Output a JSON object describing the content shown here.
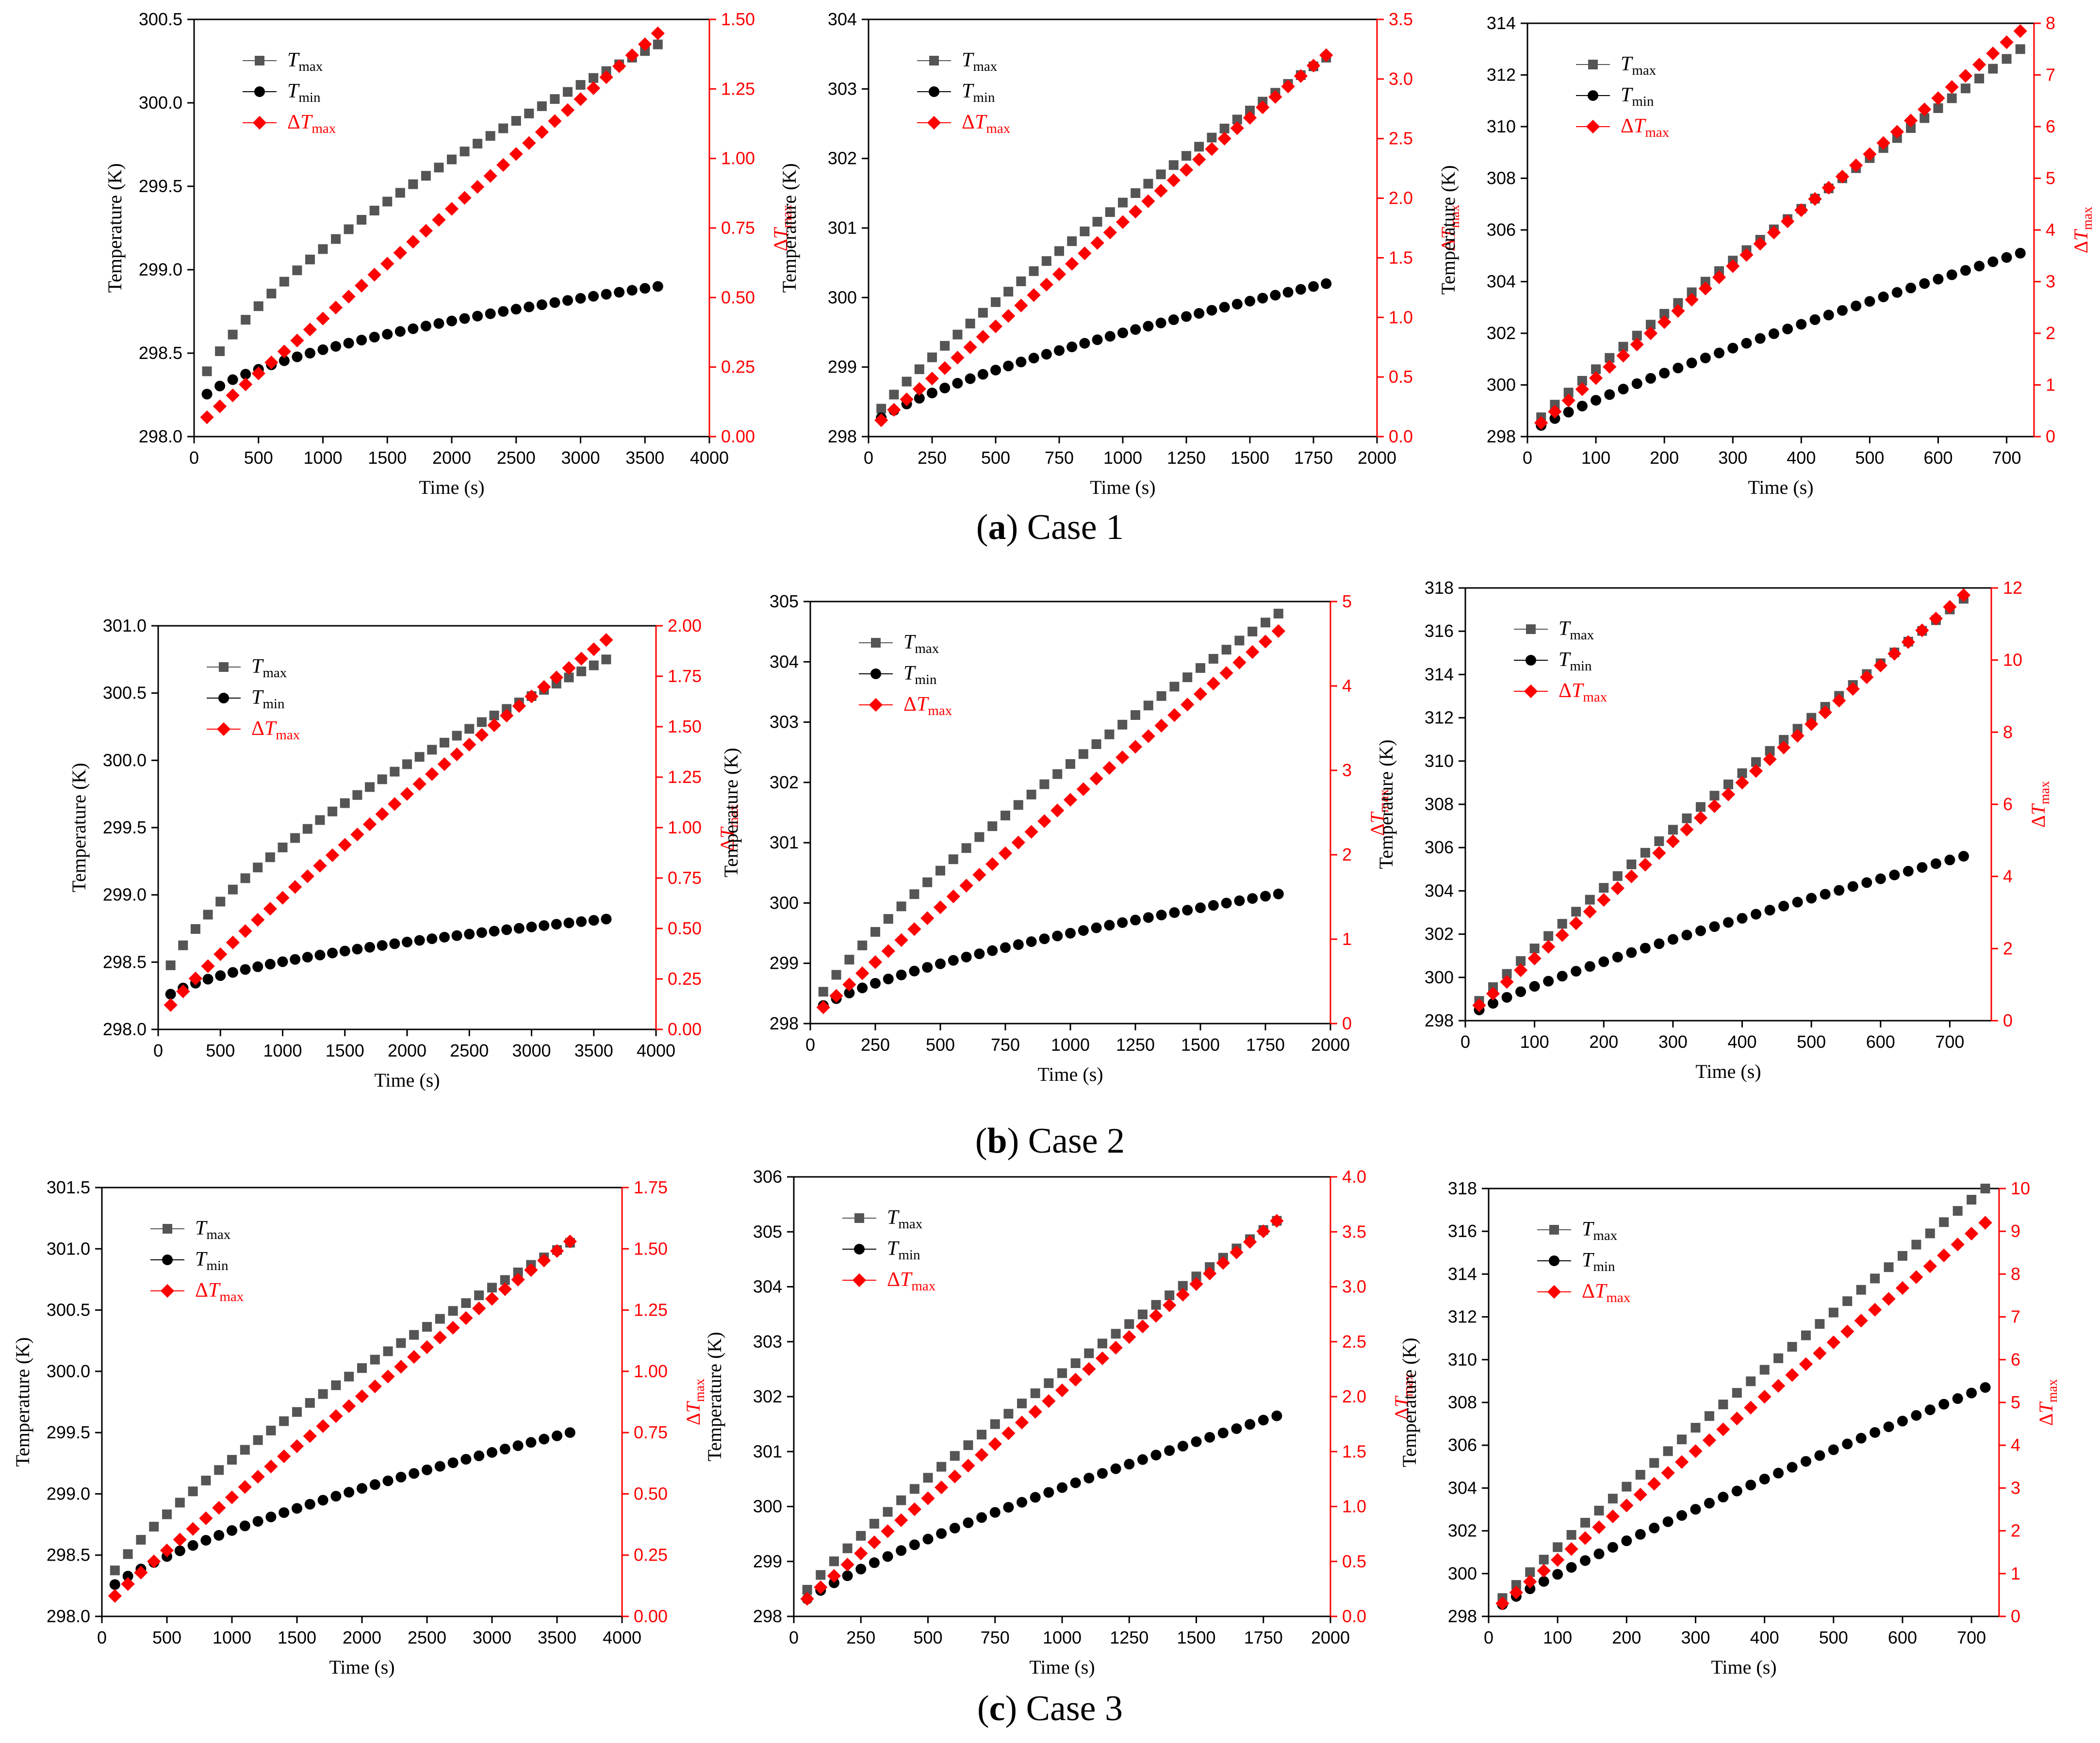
{
  "legend": {
    "tmax_label": {
      "main": "T",
      "sub": "max"
    },
    "tmin_label": {
      "main": "T",
      "sub": "min"
    },
    "dtmax_label": {
      "prefix": "Δ",
      "main": "T",
      "sub": "max"
    }
  },
  "colors": {
    "tmax": "#555555",
    "tmin": "#000000",
    "dtmax": "#ff0000",
    "axis": "#000000"
  },
  "rows": [
    {
      "id": "a",
      "caption": {
        "open": "(",
        "letter": "a",
        "close": ")",
        "text": " Case 1"
      }
    },
    {
      "id": "b",
      "caption": {
        "open": "(",
        "letter": "b",
        "close": ")",
        "text": " Case 2"
      }
    },
    {
      "id": "c",
      "caption": {
        "open": "(",
        "letter": "c",
        "close": ")",
        "text": " Case 3"
      }
    }
  ],
  "chart_data": [
    {
      "type": "scatter",
      "panel": "a1",
      "xlabel": "Time (s)",
      "ylabel": "Temperature (K)",
      "y2label": "ΔTmax",
      "xlim": [
        0,
        4000
      ],
      "ylim": [
        298.0,
        300.5
      ],
      "y2lim": [
        0,
        1.5
      ],
      "xticks": [
        "0",
        "500",
        "1000",
        "1500",
        "2000",
        "2500",
        "3000",
        "3500",
        "4000"
      ],
      "yticks": [
        "298.0",
        "298.5",
        "299.0",
        "299.5",
        "300.0",
        "300.5"
      ],
      "y2ticks": [
        "0.00",
        "0.25",
        "0.50",
        "0.75",
        "1.00",
        "1.25",
        "1.50"
      ],
      "n": 36,
      "tend": 3600,
      "tmax": {
        "start": 298.18,
        "end": 300.35,
        "shape": 0.65
      },
      "tmin": {
        "start": 298.15,
        "end": 298.9,
        "shape": 0.55
      },
      "dtmax": {
        "start": 0.03,
        "end": 1.45,
        "shape": 1.0
      }
    },
    {
      "type": "scatter",
      "panel": "a2",
      "xlabel": "Time (s)",
      "ylabel": "Temperature (K)",
      "y2label": "ΔTmax",
      "xlim": [
        0,
        2000
      ],
      "ylim": [
        298,
        304
      ],
      "y2lim": [
        0,
        3.5
      ],
      "xticks": [
        "0",
        "250",
        "500",
        "750",
        "1000",
        "1250",
        "1500",
        "1750",
        "2000"
      ],
      "yticks": [
        "298",
        "299",
        "300",
        "301",
        "302",
        "303",
        "304"
      ],
      "y2ticks": [
        "0.0",
        "0.5",
        "1.0",
        "1.5",
        "2.0",
        "2.5",
        "3.0",
        "3.5"
      ],
      "n": 36,
      "tend": 1800,
      "tmax": {
        "start": 298.15,
        "end": 303.45,
        "shape": 0.85
      },
      "tmin": {
        "start": 298.1,
        "end": 300.2,
        "shape": 0.7
      },
      "dtmax": {
        "start": 0.05,
        "end": 3.2,
        "shape": 1.0
      }
    },
    {
      "type": "scatter",
      "panel": "a3",
      "xlabel": "Time (s)",
      "ylabel": "Temperature (K)",
      "y2label": "ΔTmax",
      "xlim": [
        0,
        740
      ],
      "ylim": [
        298,
        314
      ],
      "y2lim": [
        0,
        8
      ],
      "xticks": [
        "0",
        "100",
        "200",
        "300",
        "400",
        "500",
        "600",
        "700"
      ],
      "yticks": [
        "298",
        "300",
        "302",
        "304",
        "306",
        "308",
        "310",
        "312",
        "314"
      ],
      "y2ticks": [
        "0",
        "1",
        "2",
        "3",
        "4",
        "5",
        "6",
        "7",
        "8"
      ],
      "n": 36,
      "tend": 720,
      "tmax": {
        "start": 298.2,
        "end": 313.0,
        "shape": 0.92
      },
      "tmin": {
        "start": 298.1,
        "end": 305.1,
        "shape": 0.85
      },
      "dtmax": {
        "start": 0.05,
        "end": 7.85,
        "shape": 1.0
      }
    },
    {
      "type": "scatter",
      "panel": "b1",
      "xlabel": "Time (s)",
      "ylabel": "Temperature (K)",
      "y2label": "ΔTmax",
      "xlim": [
        0,
        4000
      ],
      "ylim": [
        298.0,
        301.0
      ],
      "y2lim": [
        0,
        2.0
      ],
      "xticks": [
        "0",
        "500",
        "1000",
        "1500",
        "2000",
        "2500",
        "3000",
        "3500",
        "4000"
      ],
      "yticks": [
        "298.0",
        "298.5",
        "299.0",
        "299.5",
        "300.0",
        "300.5",
        "301.0"
      ],
      "y2ticks": [
        "0.00",
        "0.25",
        "0.50",
        "0.75",
        "1.00",
        "1.25",
        "1.50",
        "1.75",
        "2.00"
      ],
      "n": 36,
      "tend": 3600,
      "tmax": {
        "start": 298.2,
        "end": 300.75,
        "shape": 0.62
      },
      "tmin": {
        "start": 298.15,
        "end": 298.82,
        "shape": 0.5
      },
      "dtmax": {
        "start": 0.04,
        "end": 1.93,
        "shape": 0.88
      }
    },
    {
      "type": "scatter",
      "panel": "b2",
      "xlabel": "Time (s)",
      "ylabel": "Temperature (K)",
      "y2label": "ΔTmax",
      "xlim": [
        0,
        2000
      ],
      "ylim": [
        298,
        305
      ],
      "y2lim": [
        0,
        5
      ],
      "xticks": [
        "0",
        "250",
        "500",
        "750",
        "1000",
        "1250",
        "1500",
        "1750",
        "2000"
      ],
      "yticks": [
        "298",
        "299",
        "300",
        "301",
        "302",
        "303",
        "304",
        "305"
      ],
      "y2ticks": [
        "0",
        "1",
        "2",
        "3",
        "4",
        "5"
      ],
      "n": 36,
      "tend": 1800,
      "tmax": {
        "start": 298.15,
        "end": 304.8,
        "shape": 0.8
      },
      "tmin": {
        "start": 298.1,
        "end": 300.15,
        "shape": 0.65
      },
      "dtmax": {
        "start": 0.05,
        "end": 4.65,
        "shape": 0.97
      }
    },
    {
      "type": "scatter",
      "panel": "b3",
      "xlabel": "Time (s)",
      "ylabel": "Temperature (K)",
      "y2label": "ΔTmax",
      "xlim": [
        0,
        760
      ],
      "ylim": [
        298,
        318
      ],
      "y2lim": [
        0,
        12
      ],
      "xticks": [
        "0",
        "100",
        "200",
        "300",
        "400",
        "500",
        "600",
        "700"
      ],
      "yticks": [
        "298",
        "300",
        "302",
        "304",
        "306",
        "308",
        "310",
        "312",
        "314",
        "316",
        "318"
      ],
      "y2ticks": [
        "0",
        "2",
        "4",
        "6",
        "8",
        "10",
        "12"
      ],
      "n": 36,
      "tend": 720,
      "tmax": {
        "start": 298.2,
        "end": 317.5,
        "shape": 0.92
      },
      "tmin": {
        "start": 298.1,
        "end": 305.6,
        "shape": 0.82
      },
      "dtmax": {
        "start": 0.1,
        "end": 11.8,
        "shape": 1.0
      }
    },
    {
      "type": "scatter",
      "panel": "c1",
      "xlabel": "Time (s)",
      "ylabel": "Temperature (K)",
      "y2label": "ΔTmax",
      "xlim": [
        0,
        4000
      ],
      "ylim": [
        298.0,
        301.5
      ],
      "y2lim": [
        0,
        1.75
      ],
      "xticks": [
        "0",
        "500",
        "1000",
        "1500",
        "2000",
        "2500",
        "3000",
        "3500",
        "4000"
      ],
      "yticks": [
        "298.0",
        "298.5",
        "299.0",
        "299.5",
        "300.0",
        "300.5",
        "301.0",
        "301.5"
      ],
      "y2ticks": [
        "0.00",
        "0.25",
        "0.50",
        "0.75",
        "1.00",
        "1.25",
        "1.50",
        "1.75"
      ],
      "n": 36,
      "tend": 3600,
      "tmax": {
        "start": 298.18,
        "end": 301.05,
        "shape": 0.75
      },
      "tmin": {
        "start": 298.15,
        "end": 299.5,
        "shape": 0.7
      },
      "dtmax": {
        "start": 0.03,
        "end": 1.53,
        "shape": 0.93
      }
    },
    {
      "type": "scatter",
      "panel": "c2",
      "xlabel": "Time (s)",
      "ylabel": "Temperature (K)",
      "y2label": "ΔTmax",
      "xlim": [
        0,
        2000
      ],
      "ylim": [
        298,
        306
      ],
      "y2lim": [
        0,
        4.0
      ],
      "xticks": [
        "0",
        "250",
        "500",
        "750",
        "1000",
        "1250",
        "1500",
        "1750",
        "2000"
      ],
      "yticks": [
        "298",
        "299",
        "300",
        "301",
        "302",
        "303",
        "304",
        "305",
        "306"
      ],
      "y2ticks": [
        "0.0",
        "0.5",
        "1.0",
        "1.5",
        "2.0",
        "2.5",
        "3.0",
        "3.5",
        "4.0"
      ],
      "n": 36,
      "tend": 1800,
      "tmax": {
        "start": 298.15,
        "end": 305.2,
        "shape": 0.85
      },
      "tmin": {
        "start": 298.1,
        "end": 301.65,
        "shape": 0.78
      },
      "dtmax": {
        "start": 0.05,
        "end": 3.6,
        "shape": 0.97
      }
    },
    {
      "type": "scatter",
      "panel": "c3",
      "xlabel": "Time (s)",
      "ylabel": "Temperature (K)",
      "y2label": "ΔTmax",
      "xlim": [
        0,
        740
      ],
      "ylim": [
        298,
        318
      ],
      "y2lim": [
        0,
        10
      ],
      "xticks": [
        "0",
        "100",
        "200",
        "300",
        "400",
        "500",
        "600",
        "700"
      ],
      "yticks": [
        "298",
        "300",
        "302",
        "304",
        "306",
        "308",
        "310",
        "312",
        "314",
        "316",
        "318"
      ],
      "y2ticks": [
        "0",
        "1",
        "2",
        "3",
        "4",
        "5",
        "6",
        "7",
        "8",
        "9",
        "10"
      ],
      "n": 36,
      "tend": 720,
      "tmax": {
        "start": 298.2,
        "end": 318.0,
        "shape": 0.95
      },
      "tmin": {
        "start": 298.1,
        "end": 308.7,
        "shape": 0.88
      },
      "dtmax": {
        "start": 0.05,
        "end": 9.2,
        "shape": 1.0
      }
    }
  ]
}
